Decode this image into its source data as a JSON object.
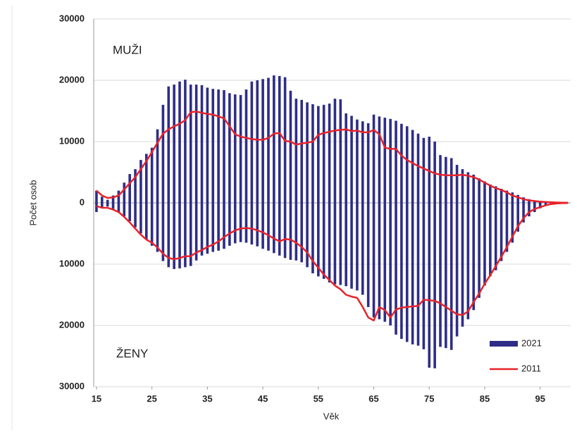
{
  "chart_data": {
    "type": "pyramid",
    "xlabel": "Věk",
    "ylabel": "Počet osob",
    "annotations": [
      "MUŽI",
      "ŽENY"
    ],
    "x": [
      15,
      16,
      17,
      18,
      19,
      20,
      21,
      22,
      23,
      24,
      25,
      26,
      27,
      28,
      29,
      30,
      31,
      32,
      33,
      34,
      35,
      36,
      37,
      38,
      39,
      40,
      41,
      42,
      43,
      44,
      45,
      46,
      47,
      48,
      49,
      50,
      51,
      52,
      53,
      54,
      55,
      56,
      57,
      58,
      59,
      60,
      61,
      62,
      63,
      64,
      65,
      66,
      67,
      68,
      69,
      70,
      71,
      72,
      73,
      74,
      75,
      76,
      77,
      78,
      79,
      80,
      81,
      82,
      83,
      84,
      85,
      86,
      87,
      88,
      89,
      90,
      91,
      92,
      93,
      94,
      95,
      96,
      97,
      98,
      99,
      100
    ],
    "xlim": [
      14.5,
      100.5
    ],
    "xticks": [
      15,
      25,
      35,
      45,
      55,
      65,
      75,
      85,
      95
    ],
    "ylim": [
      -30000,
      30000
    ],
    "yticks": [
      {
        "value": -30000,
        "label": "30000"
      },
      {
        "value": -20000,
        "label": "20000"
      },
      {
        "value": -10000,
        "label": "10000"
      },
      0,
      10000,
      20000,
      30000
    ],
    "grid": true,
    "legend": "lower right",
    "series": [
      {
        "name": "2021",
        "style": "bar",
        "color": "#2e2d87",
        "men": [
          2000,
          1000,
          500,
          1200,
          2000,
          3300,
          4700,
          5500,
          7000,
          8000,
          9000,
          12000,
          16000,
          19000,
          19300,
          19800,
          20100,
          19300,
          19300,
          19200,
          18800,
          18600,
          18500,
          18400,
          17900,
          17700,
          17600,
          18500,
          19800,
          20000,
          20200,
          20400,
          20800,
          20700,
          20500,
          18300,
          17000,
          16800,
          16400,
          16100,
          15800,
          16000,
          16200,
          17000,
          16900,
          14600,
          14200,
          13600,
          13300,
          13000,
          14400,
          14100,
          13900,
          13700,
          13400,
          12900,
          12500,
          11900,
          11300,
          10600,
          10800,
          10000,
          7800,
          7500,
          7300,
          6200,
          5500,
          5000,
          4600,
          4000,
          3500,
          3000,
          2700,
          2300,
          2000,
          1700,
          1300,
          900,
          600,
          400,
          300,
          200,
          100,
          80,
          50,
          30
        ],
        "women": [
          -1500,
          -800,
          -600,
          -1000,
          -1500,
          -2200,
          -3000,
          -4000,
          -5000,
          -6000,
          -7000,
          -8000,
          -9500,
          -10500,
          -10800,
          -10700,
          -10500,
          -10300,
          -9400,
          -8600,
          -8300,
          -8000,
          -7800,
          -7500,
          -7000,
          -6600,
          -6400,
          -6500,
          -6800,
          -7100,
          -7500,
          -7800,
          -8200,
          -8600,
          -9000,
          -9300,
          -9400,
          -9700,
          -10500,
          -11500,
          -12000,
          -12400,
          -13000,
          -13300,
          -13400,
          -13600,
          -14000,
          -14300,
          -15000,
          -17000,
          -18700,
          -19000,
          -19400,
          -20000,
          -21500,
          -22200,
          -22700,
          -23100,
          -23300,
          -23900,
          -26900,
          -27000,
          -23500,
          -23700,
          -24000,
          -21800,
          -20200,
          -19000,
          -17500,
          -15500,
          -13500,
          -12000,
          -11000,
          -9500,
          -8000,
          -6500,
          -4700,
          -3200,
          -2200,
          -1500,
          -900,
          -500,
          -300,
          -150,
          -80,
          -40
        ]
      },
      {
        "name": "2011",
        "style": "line",
        "color": "#e8232a",
        "men": [
          2000,
          1200,
          800,
          900,
          1200,
          2200,
          3200,
          4200,
          5500,
          6800,
          8300,
          9800,
          11300,
          12000,
          12500,
          12900,
          13500,
          14800,
          14900,
          14700,
          14500,
          14400,
          14100,
          13800,
          12500,
          11200,
          10800,
          10600,
          10400,
          10300,
          10300,
          10600,
          11300,
          11400,
          10100,
          10000,
          9500,
          9700,
          9800,
          10000,
          11100,
          11400,
          11600,
          11800,
          11900,
          12000,
          11700,
          11800,
          11500,
          11500,
          11900,
          11200,
          9000,
          8800,
          8800,
          7700,
          7000,
          6500,
          6000,
          5600,
          5200,
          4800,
          4600,
          4500,
          4500,
          4500,
          4600,
          4400,
          4200,
          3800,
          3300,
          2800,
          2400,
          2100,
          1700,
          1200,
          900,
          600,
          400,
          300,
          200,
          150,
          100,
          60,
          30,
          20
        ],
        "women": [
          -500,
          -800,
          -800,
          -1100,
          -1500,
          -2300,
          -3200,
          -4200,
          -5200,
          -6000,
          -6500,
          -7300,
          -8300,
          -9000,
          -9200,
          -9000,
          -8700,
          -8700,
          -8100,
          -7700,
          -7200,
          -6800,
          -6300,
          -5600,
          -5000,
          -4500,
          -4200,
          -4100,
          -4200,
          -4500,
          -4800,
          -5300,
          -5800,
          -6300,
          -5900,
          -6000,
          -6500,
          -7200,
          -8100,
          -9500,
          -10600,
          -11700,
          -12600,
          -13500,
          -14100,
          -15000,
          -15300,
          -15500,
          -17000,
          -18700,
          -19200,
          -17000,
          -17500,
          -18700,
          -17400,
          -17100,
          -17000,
          -16900,
          -16800,
          -15800,
          -15900,
          -16000,
          -16400,
          -17000,
          -17600,
          -18200,
          -18300,
          -17700,
          -16200,
          -14800,
          -13200,
          -11800,
          -10300,
          -8800,
          -7200,
          -5500,
          -3800,
          -2500,
          -1500,
          -1000,
          -700,
          -400,
          -200,
          -100,
          -50,
          -20
        ]
      }
    ]
  }
}
